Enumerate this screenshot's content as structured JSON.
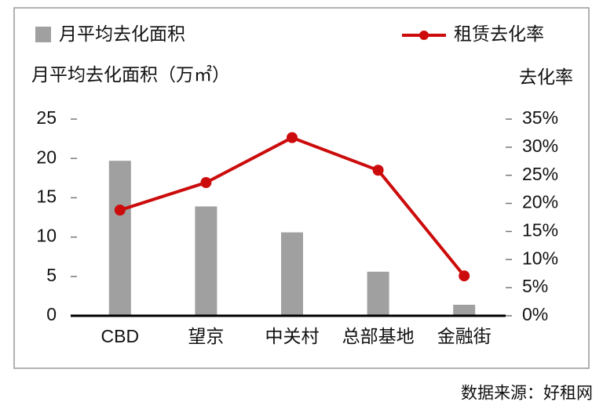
{
  "chart_data": {
    "type": "bar-line",
    "y_label": "月平均去化面积（万㎡）",
    "y2_label": "去化率",
    "source": "数据来源：好租网",
    "categories": [
      "CBD",
      "望京",
      "中关村",
      "总部基地",
      "金融街"
    ],
    "series": [
      {
        "name": "月平均去化面积",
        "type": "bar",
        "color": "#a0a0a0",
        "values": [
          19.7,
          13.9,
          10.6,
          5.6,
          1.4
        ]
      },
      {
        "name": "租赁去化率",
        "type": "line",
        "axis": "y2",
        "color": "#cc0c0c",
        "values": [
          18.8,
          23.7,
          31.7,
          25.9,
          7.1
        ]
      }
    ],
    "ylim": [
      0,
      25
    ],
    "yticks": [
      0,
      5,
      10,
      15,
      20,
      25
    ],
    "y2lim": [
      0,
      35
    ],
    "y2ticks": [
      {
        "value": 0,
        "label": "0%"
      },
      {
        "value": 5,
        "label": "5%"
      },
      {
        "value": 10,
        "label": "10%"
      },
      {
        "value": 15,
        "label": "15%"
      },
      {
        "value": 20,
        "label": "20%"
      },
      {
        "value": 25,
        "label": "25%"
      },
      {
        "value": 30,
        "label": "30%"
      },
      {
        "value": 35,
        "label": "35%"
      }
    ],
    "grid": false
  }
}
